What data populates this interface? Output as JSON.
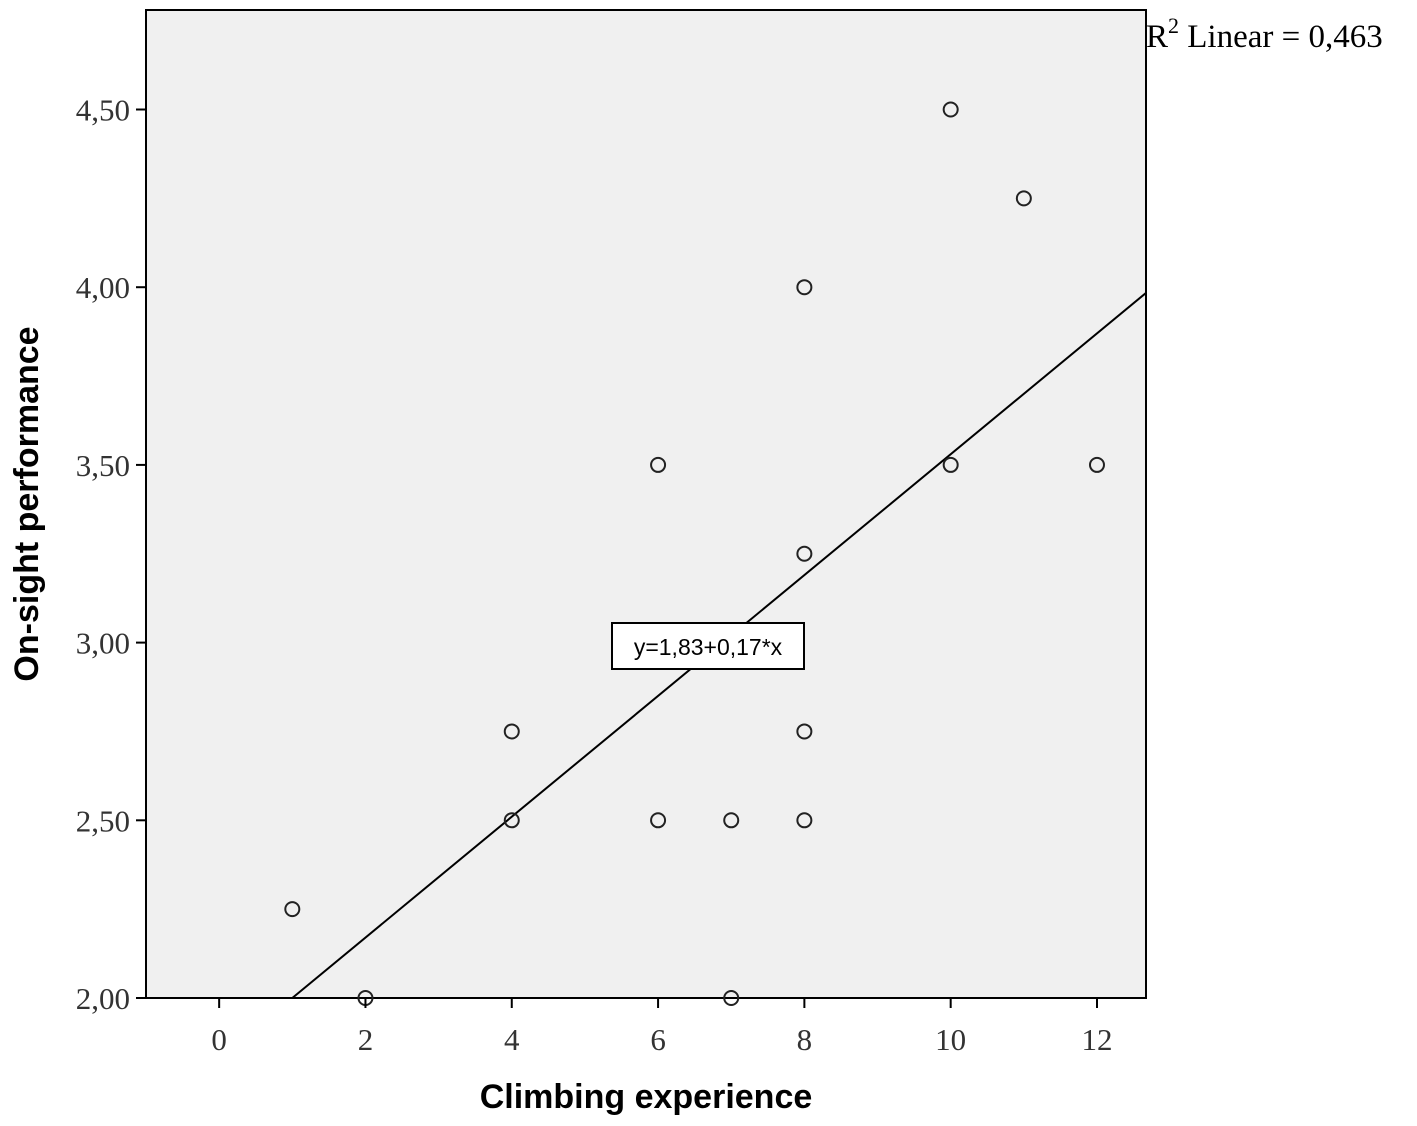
{
  "chart_data": {
    "type": "scatter",
    "xlabel": "Climbing experience",
    "ylabel": "On-sight performance",
    "xlim": [
      -1,
      12.67
    ],
    "ylim": [
      2.0,
      4.78
    ],
    "x_ticks": [
      0,
      2,
      4,
      6,
      8,
      10,
      12
    ],
    "y_ticks": [
      2.0,
      2.5,
      3.0,
      3.5,
      4.0,
      4.5
    ],
    "x_tick_labels": [
      "0",
      "2",
      "4",
      "6",
      "8",
      "10",
      "12"
    ],
    "y_tick_labels": [
      "2,00",
      "2,50",
      "3,00",
      "3,50",
      "4,00",
      "4,50"
    ],
    "grid": false,
    "plot_background": "#f0f0f0",
    "marker_style": "hollow-circle",
    "points": [
      {
        "x": 1,
        "y": 2.25
      },
      {
        "x": 2,
        "y": 2.0
      },
      {
        "x": 4,
        "y": 2.75
      },
      {
        "x": 4,
        "y": 2.5
      },
      {
        "x": 6,
        "y": 3.5
      },
      {
        "x": 6,
        "y": 2.5
      },
      {
        "x": 7,
        "y": 2.5
      },
      {
        "x": 7,
        "y": 2.0
      },
      {
        "x": 8,
        "y": 4.0
      },
      {
        "x": 8,
        "y": 3.25
      },
      {
        "x": 8,
        "y": 2.75
      },
      {
        "x": 8,
        "y": 2.5
      },
      {
        "x": 10,
        "y": 4.5
      },
      {
        "x": 10,
        "y": 3.5
      },
      {
        "x": 11,
        "y": 4.25
      },
      {
        "x": 12,
        "y": 3.5
      }
    ],
    "fit_line": {
      "intercept": 1.83,
      "slope": 0.17,
      "equation_label": "y=1,83+0,17*x"
    },
    "r2_label": {
      "prefix": "R",
      "superscript": "2",
      "text": " Linear = 0,463"
    }
  }
}
